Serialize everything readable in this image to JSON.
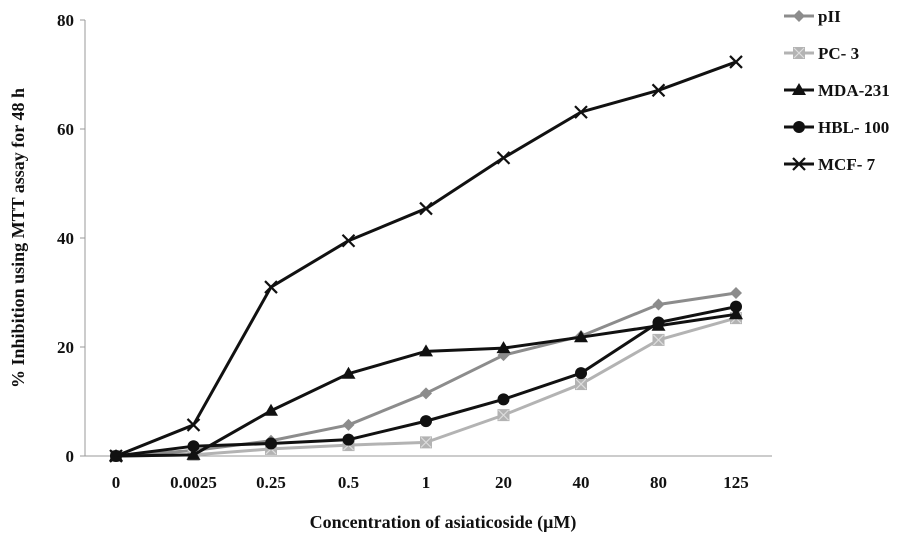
{
  "chart_data": {
    "type": "line",
    "categories": [
      "0",
      "0.0025",
      "0.25",
      "0.5",
      "1",
      "20",
      "40",
      "80",
      "125"
    ],
    "xlabel": "Concentration  of asiaticoside (μM)",
    "ylabel": "% Inhibition using MTT assay for 48 h",
    "ylim": [
      0,
      80
    ],
    "yticks": [
      0,
      20,
      40,
      60,
      80
    ],
    "grid": false,
    "legend_position": "right",
    "series": [
      {
        "name": "pII",
        "marker": "diamond",
        "color": "#8c8c8c",
        "values": [
          0,
          1.0,
          2.8,
          5.7,
          11.5,
          18.5,
          22.0,
          27.8,
          29.9
        ]
      },
      {
        "name": "PC- 3",
        "marker": "square",
        "color": "#b3b3b3",
        "values": [
          0,
          0.2,
          1.3,
          2.0,
          2.5,
          7.5,
          13.2,
          21.3,
          25.3
        ]
      },
      {
        "name": "MDA-231",
        "marker": "triangle",
        "color": "#111111",
        "values": [
          0,
          0.2,
          8.3,
          15.1,
          19.2,
          19.8,
          21.8,
          23.9,
          26.0
        ]
      },
      {
        "name": "HBL- 100",
        "marker": "circle",
        "color": "#111111",
        "values": [
          0,
          1.8,
          2.3,
          3.0,
          6.4,
          10.4,
          15.2,
          24.5,
          27.4
        ]
      },
      {
        "name": "MCF- 7",
        "marker": "x",
        "color": "#111111",
        "values": [
          0,
          5.7,
          31.0,
          39.5,
          45.4,
          54.7,
          63.1,
          67.1,
          72.3
        ]
      }
    ]
  }
}
